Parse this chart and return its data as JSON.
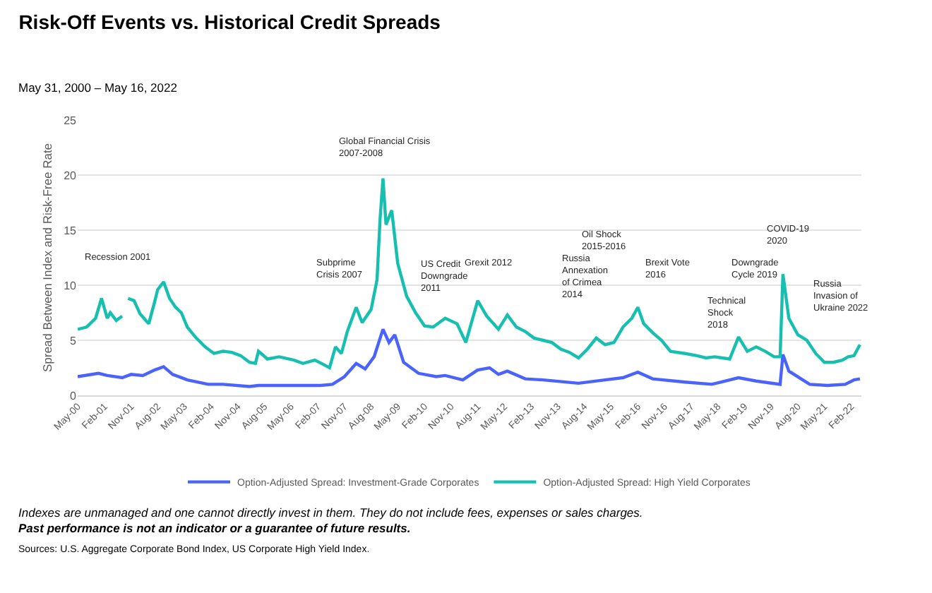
{
  "chart_data": {
    "type": "line",
    "title": "Risk-Off Events vs. Historical Credit Spreads",
    "subtitle": "May 31, 2000 – May 16, 2022",
    "ylabel": "Spread Between Index and Risk-Free Rate",
    "xlim": [
      "2000-05",
      "2022-05-16"
    ],
    "ylim": [
      0,
      25
    ],
    "yticks": [
      0,
      5,
      10,
      15,
      20,
      25
    ],
    "xticks": [
      {
        "value": "2000-05",
        "label": "May-00"
      },
      {
        "value": "2001-02",
        "label": "Feb-01"
      },
      {
        "value": "2001-11",
        "label": "Nov-01"
      },
      {
        "value": "2002-08",
        "label": "Aug-02"
      },
      {
        "value": "2003-05",
        "label": "May-03"
      },
      {
        "value": "2004-02",
        "label": "Feb-04"
      },
      {
        "value": "2004-11",
        "label": "Nov-04"
      },
      {
        "value": "2005-08",
        "label": "Aug-05"
      },
      {
        "value": "2006-05",
        "label": "May-06"
      },
      {
        "value": "2007-02",
        "label": "Feb-07"
      },
      {
        "value": "2007-11",
        "label": "Nov-07"
      },
      {
        "value": "2008-08",
        "label": "Aug-08"
      },
      {
        "value": "2009-05",
        "label": "May-09"
      },
      {
        "value": "2010-02",
        "label": "Feb-10"
      },
      {
        "value": "2010-11",
        "label": "Nov-10"
      },
      {
        "value": "2011-08",
        "label": "Aug-11"
      },
      {
        "value": "2012-05",
        "label": "May-12"
      },
      {
        "value": "2013-02",
        "label": "Feb-13"
      },
      {
        "value": "2013-11",
        "label": "Nov-13"
      },
      {
        "value": "2014-08",
        "label": "Aug-14"
      },
      {
        "value": "2015-05",
        "label": "May-15"
      },
      {
        "value": "2016-02",
        "label": "Feb-16"
      },
      {
        "value": "2016-11",
        "label": "Nov-16"
      },
      {
        "value": "2017-08",
        "label": "Aug-17"
      },
      {
        "value": "2018-05",
        "label": "May-18"
      },
      {
        "value": "2019-02",
        "label": "Feb-19"
      },
      {
        "value": "2019-11",
        "label": "Nov-19"
      },
      {
        "value": "2020-08",
        "label": "Aug-20"
      },
      {
        "value": "2021-05",
        "label": "May-21"
      },
      {
        "value": "2022-02",
        "label": "Feb-22"
      }
    ],
    "grid": "y",
    "legend": "bottom",
    "marker": "none",
    "line_style": "solid",
    "series": [
      {
        "name": "Option-Adjusted Spread: Investment-Grade Corporates",
        "color": "#4a63ff",
        "x": [
          "2000-05",
          "2000-12",
          "2001-03",
          "2001-08",
          "2001-11",
          "2002-03",
          "2002-07",
          "2002-10",
          "2003-01",
          "2003-06",
          "2004-01",
          "2004-06",
          "2005-03",
          "2005-06",
          "2006-06",
          "2007-03",
          "2007-07",
          "2007-11",
          "2008-03",
          "2008-06",
          "2008-09",
          "2008-12",
          "2009-02",
          "2009-04",
          "2009-07",
          "2009-12",
          "2010-06",
          "2010-09",
          "2011-03",
          "2011-08",
          "2011-12",
          "2012-03",
          "2012-06",
          "2012-12",
          "2013-06",
          "2014-06",
          "2015-03",
          "2015-09",
          "2016-02",
          "2016-07",
          "2017-06",
          "2018-03",
          "2018-12",
          "2019-06",
          "2020-02",
          "2020-03",
          "2020-05",
          "2020-12",
          "2021-06",
          "2021-12",
          "2022-03",
          "2022-05"
        ],
        "values": [
          1.7,
          2.0,
          1.8,
          1.6,
          1.9,
          1.8,
          2.3,
          2.6,
          1.9,
          1.4,
          1.0,
          1.0,
          0.8,
          0.9,
          0.9,
          0.9,
          1.0,
          1.7,
          2.9,
          2.4,
          3.5,
          6.0,
          4.8,
          5.5,
          3.0,
          2.0,
          1.7,
          1.8,
          1.4,
          2.3,
          2.5,
          1.9,
          2.2,
          1.5,
          1.4,
          1.1,
          1.4,
          1.6,
          2.1,
          1.5,
          1.2,
          1.0,
          1.6,
          1.3,
          1.0,
          3.7,
          2.2,
          1.0,
          0.9,
          1.0,
          1.4,
          1.5
        ]
      },
      {
        "name": "Option-Adjusted Spread: High Yield Corporates",
        "color": "#17bfb0",
        "x": [
          "2000-05",
          "2000-08",
          "2000-11",
          "2001-01",
          "2001-03",
          "2001-04",
          "2001-06",
          "2001-08",
          "2001-09",
          "2001-10",
          "2001-12",
          "2002-02",
          "2002-05",
          "2002-07",
          "2002-08",
          "2002-10",
          "2002-12",
          "2003-02",
          "2003-04",
          "2003-06",
          "2003-09",
          "2003-12",
          "2004-03",
          "2004-06",
          "2004-09",
          "2004-12",
          "2005-03",
          "2005-05",
          "2005-06",
          "2005-09",
          "2006-01",
          "2006-06",
          "2006-09",
          "2007-01",
          "2007-04",
          "2007-06",
          "2007-08",
          "2007-10",
          "2007-12",
          "2008-03",
          "2008-05",
          "2008-08",
          "2008-10",
          "2008-11",
          "2008-12",
          "2009-01",
          "2009-03",
          "2009-05",
          "2009-08",
          "2009-11",
          "2010-02",
          "2010-05",
          "2010-09",
          "2011-01",
          "2011-04",
          "2011-08",
          "2011-11",
          "2012-03",
          "2012-06",
          "2012-09",
          "2012-12",
          "2013-03",
          "2013-06",
          "2013-09",
          "2013-12",
          "2014-03",
          "2014-06",
          "2014-09",
          "2014-12",
          "2015-03",
          "2015-06",
          "2015-09",
          "2015-12",
          "2016-02",
          "2016-04",
          "2016-07",
          "2016-10",
          "2017-01",
          "2017-06",
          "2017-10",
          "2018-01",
          "2018-04",
          "2018-09",
          "2018-12",
          "2019-03",
          "2019-06",
          "2019-09",
          "2019-12",
          "2020-02",
          "2020-03",
          "2020-05",
          "2020-08",
          "2020-11",
          "2021-02",
          "2021-05",
          "2021-08",
          "2021-11",
          "2022-01",
          "2022-03",
          "2022-05"
        ],
        "values": [
          6.0,
          6.2,
          7.0,
          8.8,
          7.0,
          7.5,
          6.8,
          7.2,
          null,
          8.8,
          8.6,
          7.4,
          6.5,
          8.5,
          9.6,
          10.3,
          8.8,
          8.0,
          7.5,
          6.2,
          5.2,
          4.4,
          3.8,
          4.0,
          3.9,
          3.6,
          3.0,
          2.9,
          4.0,
          3.3,
          3.5,
          3.2,
          2.9,
          3.2,
          2.8,
          2.5,
          4.4,
          3.8,
          5.8,
          8.0,
          6.6,
          7.8,
          10.5,
          16.0,
          19.7,
          15.5,
          16.8,
          12.0,
          9.0,
          7.5,
          6.3,
          6.2,
          7.0,
          6.5,
          4.8,
          8.6,
          7.2,
          6.0,
          7.3,
          6.2,
          5.8,
          5.2,
          5.0,
          4.8,
          4.2,
          3.9,
          3.4,
          4.2,
          5.2,
          4.6,
          4.8,
          6.2,
          7.0,
          8.0,
          6.5,
          5.7,
          5.0,
          4.0,
          3.8,
          3.6,
          3.4,
          3.5,
          3.3,
          5.3,
          4.0,
          4.4,
          4.0,
          3.5,
          3.5,
          11.0,
          7.0,
          5.5,
          5.0,
          3.8,
          3.0,
          3.0,
          3.2,
          3.5,
          3.6,
          4.6
        ]
      }
    ],
    "annotations": [
      "Recession 2001",
      "Subprime\nCrisis 2007",
      "Global Financial Crisis\n2007-2008",
      "US Credit\nDowngrade\n2011",
      "Grexit 2012",
      "Russia\nAnnexation\nof Crimea\n2014",
      "Oil Shock\n2015-2016",
      "Brexit Vote\n2016",
      "Technical\nShock\n2018",
      "Downgrade\nCycle 2019",
      "COVID-19\n2020",
      "Russia\nInvasion of\nUkraine 2022",
      "Indexes are unmanaged and one cannot directly invest in them. They do not include fees, expenses or sales charges.",
      "Past performance is not an indicator or a guarantee of future results.",
      "Sources: U.S. Aggregate Corporate Bond Index, US Corporate High Yield Index."
    ]
  }
}
